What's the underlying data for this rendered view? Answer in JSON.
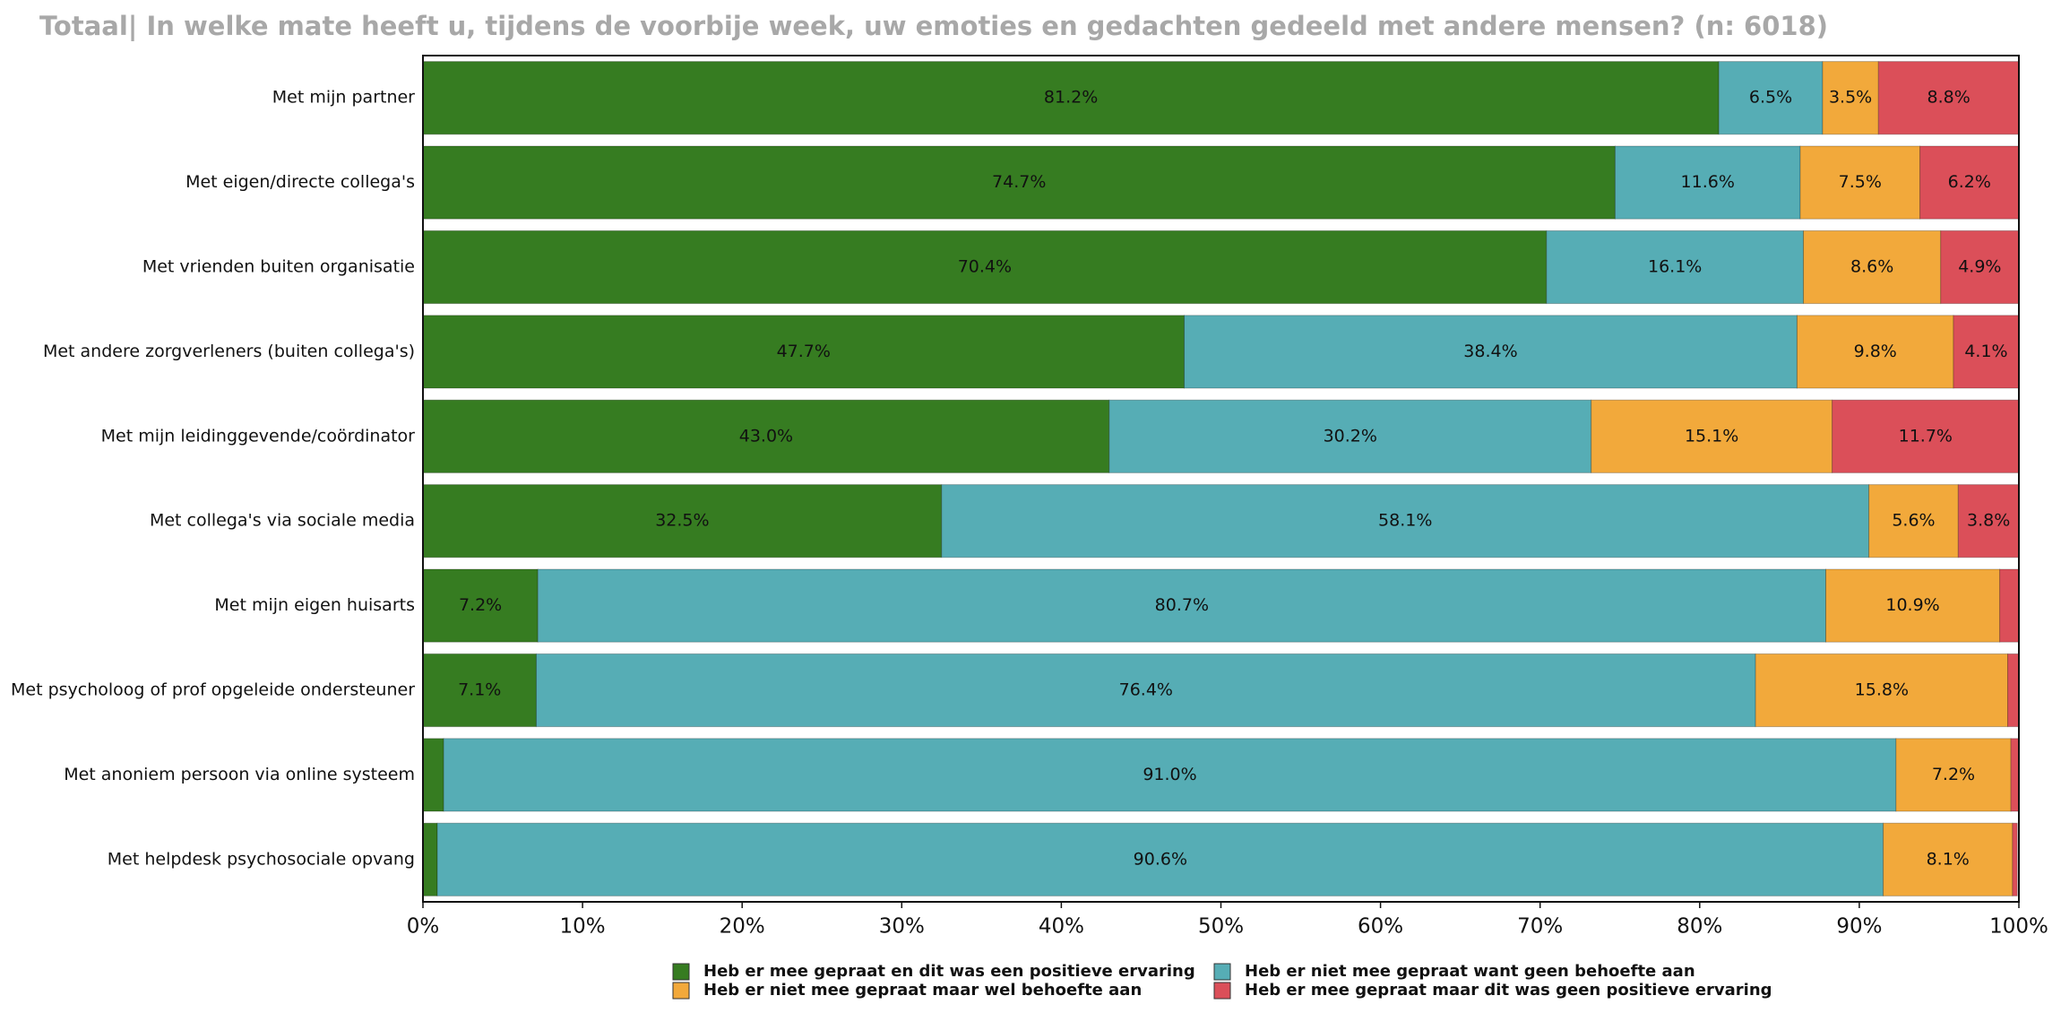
{
  "chart_data": {
    "type": "stacked-bar-horizontal",
    "title": "Totaal| In welke mate heeft u, tijdens de voorbije week, uw emoties en gedachten gedeeld met andere mensen? (n: 6018)",
    "categories": [
      "Met mijn partner",
      "Met eigen/directe collega's",
      "Met vrienden buiten organisatie",
      "Met andere zorgverleners (buiten collega's)",
      "Met mijn leidinggevende/coördinator",
      "Met collega's via sociale media",
      "Met mijn eigen huisarts",
      "Met psycholoog of prof opgeleide ondersteuner",
      "Met anoniem persoon via online systeem",
      "Met helpdesk psychosociale opvang"
    ],
    "series": [
      {
        "name": "Heb er mee gepraat en dit was een positieve ervaring",
        "color": "#367c21",
        "values": [
          81.2,
          74.7,
          70.4,
          47.7,
          43.0,
          32.5,
          7.2,
          7.1,
          1.3,
          0.9
        ],
        "value_labels": [
          "81.2%",
          "74.7%",
          "70.4%",
          "47.7%",
          "43.0%",
          "32.5%",
          "7.2%",
          "7.1%",
          null,
          null
        ]
      },
      {
        "name": "Heb er niet mee gepraat want geen behoefte aan",
        "color": "#56adb5",
        "values": [
          6.5,
          11.6,
          16.1,
          38.4,
          30.2,
          58.1,
          80.7,
          76.4,
          91.0,
          90.6
        ],
        "value_labels": [
          "6.5%",
          "11.6%",
          "16.1%",
          "38.4%",
          "30.2%",
          "58.1%",
          "80.7%",
          "76.4%",
          "91.0%",
          "90.6%"
        ]
      },
      {
        "name": "Heb er niet mee gepraat maar wel behoefte aan",
        "color": "#f2a93b",
        "values": [
          3.5,
          7.5,
          8.6,
          9.8,
          15.1,
          5.6,
          10.9,
          15.8,
          7.2,
          8.1
        ],
        "value_labels": [
          "3.5%",
          "7.5%",
          "8.6%",
          "9.8%",
          "15.1%",
          "5.6%",
          "10.9%",
          "15.8%",
          "7.2%",
          "8.1%"
        ]
      },
      {
        "name": "Heb er mee gepraat maar dit was geen positieve ervaring",
        "color": "#db4f59",
        "values": [
          8.8,
          6.2,
          4.9,
          4.1,
          11.7,
          3.8,
          1.2,
          0.7,
          0.5,
          0.3
        ],
        "value_labels": [
          "8.8%",
          "6.2%",
          "4.9%",
          "4.1%",
          "11.7%",
          "3.8%",
          null,
          null,
          null,
          null
        ]
      }
    ],
    "xlim": [
      0,
      100
    ],
    "xticks": [
      {
        "value": 0,
        "label": "0%"
      },
      {
        "value": 10,
        "label": "10%"
      },
      {
        "value": 20,
        "label": "20%"
      },
      {
        "value": 30,
        "label": "30%"
      },
      {
        "value": 40,
        "label": "40%"
      },
      {
        "value": 50,
        "label": "50%"
      },
      {
        "value": 60,
        "label": "60%"
      },
      {
        "value": 70,
        "label": "70%"
      },
      {
        "value": 80,
        "label": "80%"
      },
      {
        "value": 90,
        "label": "90%"
      },
      {
        "value": 100,
        "label": "100%"
      }
    ],
    "grid": false
  }
}
